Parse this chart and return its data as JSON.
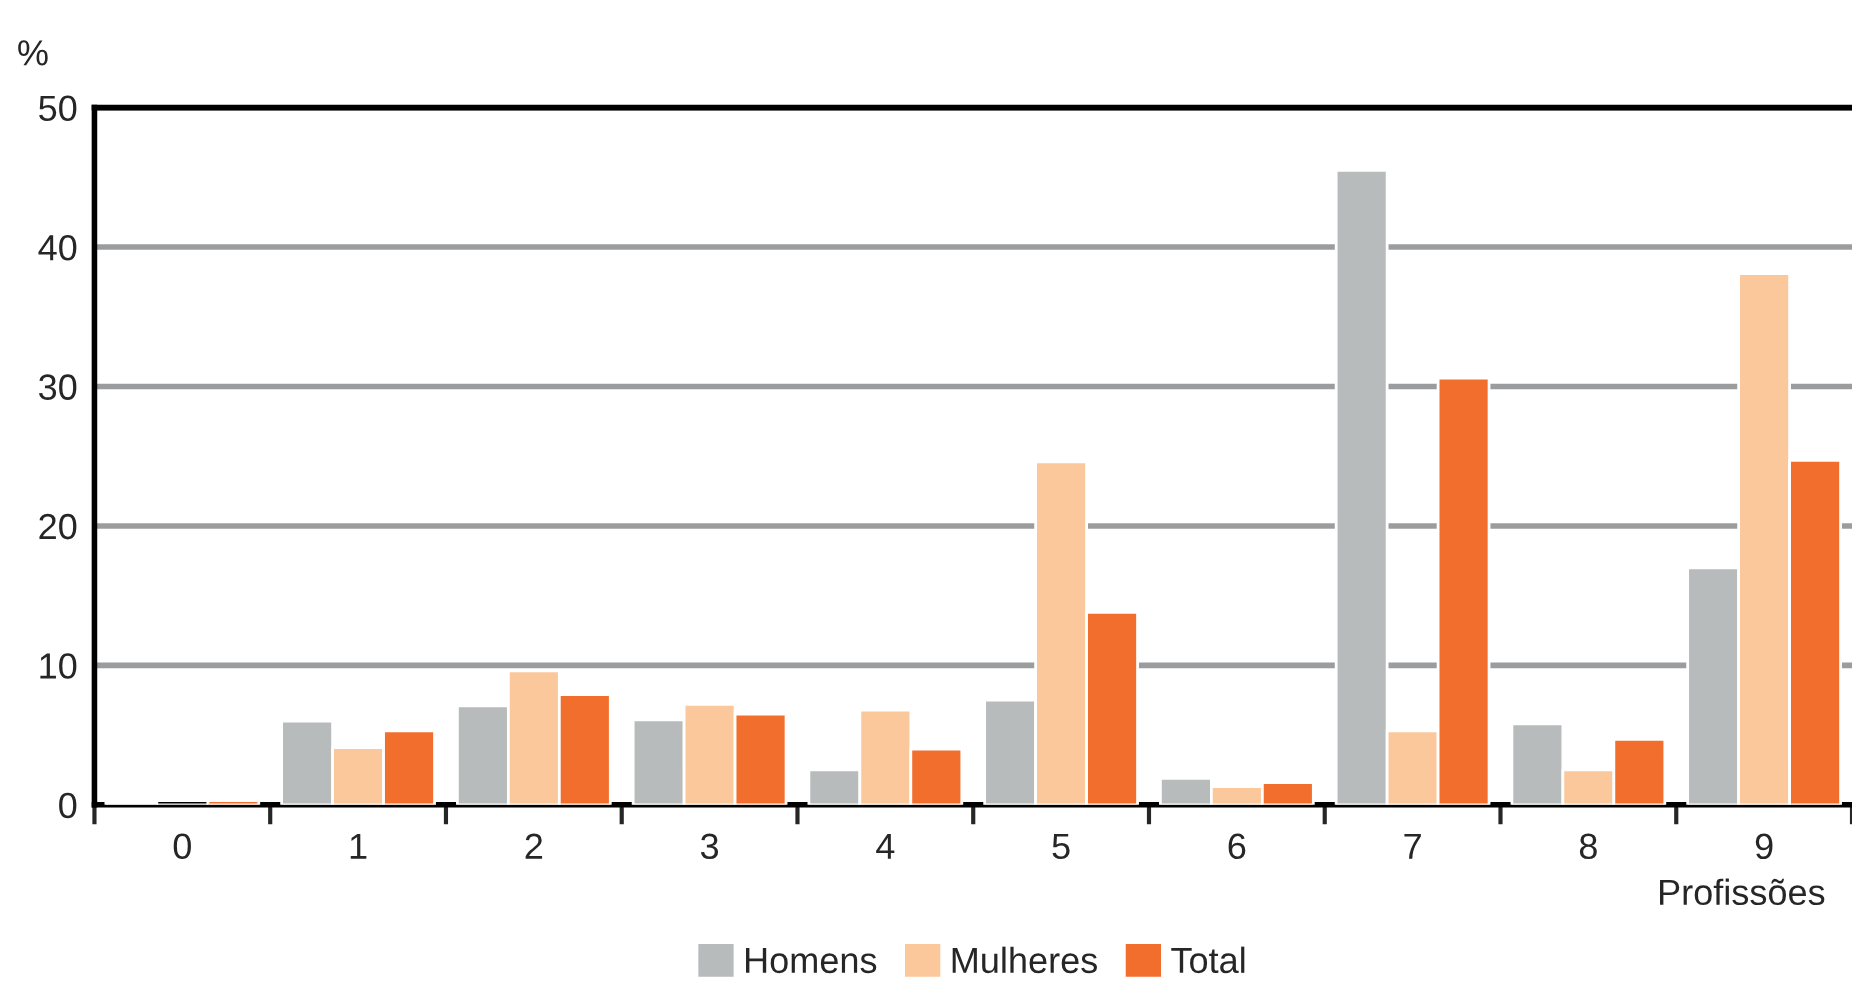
{
  "chart_data": {
    "type": "bar",
    "ylabel": "%",
    "xlabel": "Profissões",
    "categories": [
      "0",
      "1",
      "2",
      "3",
      "4",
      "5",
      "6",
      "7",
      "8",
      "9"
    ],
    "series": [
      {
        "name": "Homens",
        "color": "#b7bbbc",
        "values": [
          0.2,
          6.0,
          7.1,
          6.1,
          2.5,
          7.5,
          1.9,
          45.5,
          5.8,
          17.0
        ]
      },
      {
        "name": "Mulheres",
        "color": "#fbc89b",
        "values": [
          null,
          4.1,
          9.6,
          7.2,
          6.8,
          24.6,
          1.3,
          5.3,
          2.5,
          38.1
        ]
      },
      {
        "name": "Total",
        "color": "#f26e2d",
        "values": [
          0.3,
          5.3,
          7.9,
          6.5,
          4.0,
          13.8,
          1.6,
          30.6,
          4.7,
          24.7
        ]
      }
    ],
    "ylim": [
      0,
      50
    ],
    "yticks": [
      0,
      10,
      20,
      30,
      40,
      50
    ],
    "grid": "y",
    "legend": "bottom"
  }
}
